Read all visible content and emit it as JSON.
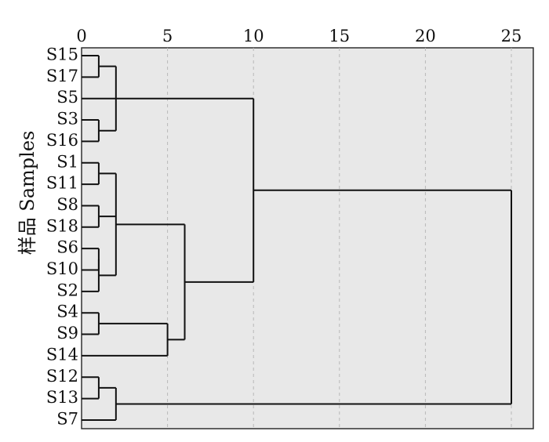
{
  "chart_data": {
    "type": "dendrogram",
    "title": "",
    "xlabel": "",
    "ylabel": "样品 Samples",
    "xlim": [
      0,
      25
    ],
    "x_ticks": [
      "0",
      "5",
      "10",
      "15",
      "20",
      "25"
    ],
    "grid": true,
    "leaves": [
      "S15",
      "S17",
      "S5",
      "S3",
      "S16",
      "S1",
      "S11",
      "S8",
      "S18",
      "S6",
      "S10",
      "S2",
      "S4",
      "S9",
      "S14",
      "S12",
      "S13",
      "S7"
    ],
    "merges": [
      {
        "members": [
          "S15",
          "S17"
        ],
        "height": 1
      },
      {
        "members": [
          "S3",
          "S16"
        ],
        "height": 1
      },
      {
        "members": [
          "S15",
          "S17",
          "S5",
          "S3",
          "S16"
        ],
        "height": 2
      },
      {
        "members": [
          "S1",
          "S11"
        ],
        "height": 1
      },
      {
        "members": [
          "S8",
          "S18"
        ],
        "height": 1
      },
      {
        "members": [
          "S6",
          "S10"
        ],
        "height": 1
      },
      {
        "members": [
          "S6",
          "S10",
          "S2"
        ],
        "height": 1
      },
      {
        "members": [
          "S1",
          "S11",
          "S8",
          "S18",
          "S6",
          "S10",
          "S2"
        ],
        "height": 2
      },
      {
        "members": [
          "S4",
          "S9"
        ],
        "height": 1
      },
      {
        "members": [
          "S4",
          "S9",
          "S14"
        ],
        "height": 5
      },
      {
        "members": [
          "S1",
          "S11",
          "S8",
          "S18",
          "S6",
          "S10",
          "S2",
          "S4",
          "S9",
          "S14"
        ],
        "height": 6
      },
      {
        "members": [
          "S15",
          "S17",
          "S5",
          "S3",
          "S16",
          "S1",
          "S11",
          "S8",
          "S18",
          "S6",
          "S10",
          "S2",
          "S4",
          "S9",
          "S14"
        ],
        "height": 10
      },
      {
        "members": [
          "S12",
          "S13"
        ],
        "height": 1
      },
      {
        "members": [
          "S12",
          "S13",
          "S7"
        ],
        "height": 2
      },
      {
        "members": [
          "S15",
          "S17",
          "S5",
          "S3",
          "S16",
          "S1",
          "S11",
          "S8",
          "S18",
          "S6",
          "S10",
          "S2",
          "S4",
          "S9",
          "S14",
          "S12",
          "S13",
          "S7"
        ],
        "height": 25
      }
    ]
  },
  "colors": {
    "plot_background": "#e8e8e8",
    "lines": "#111111",
    "grid": "#b8b8b8"
  }
}
